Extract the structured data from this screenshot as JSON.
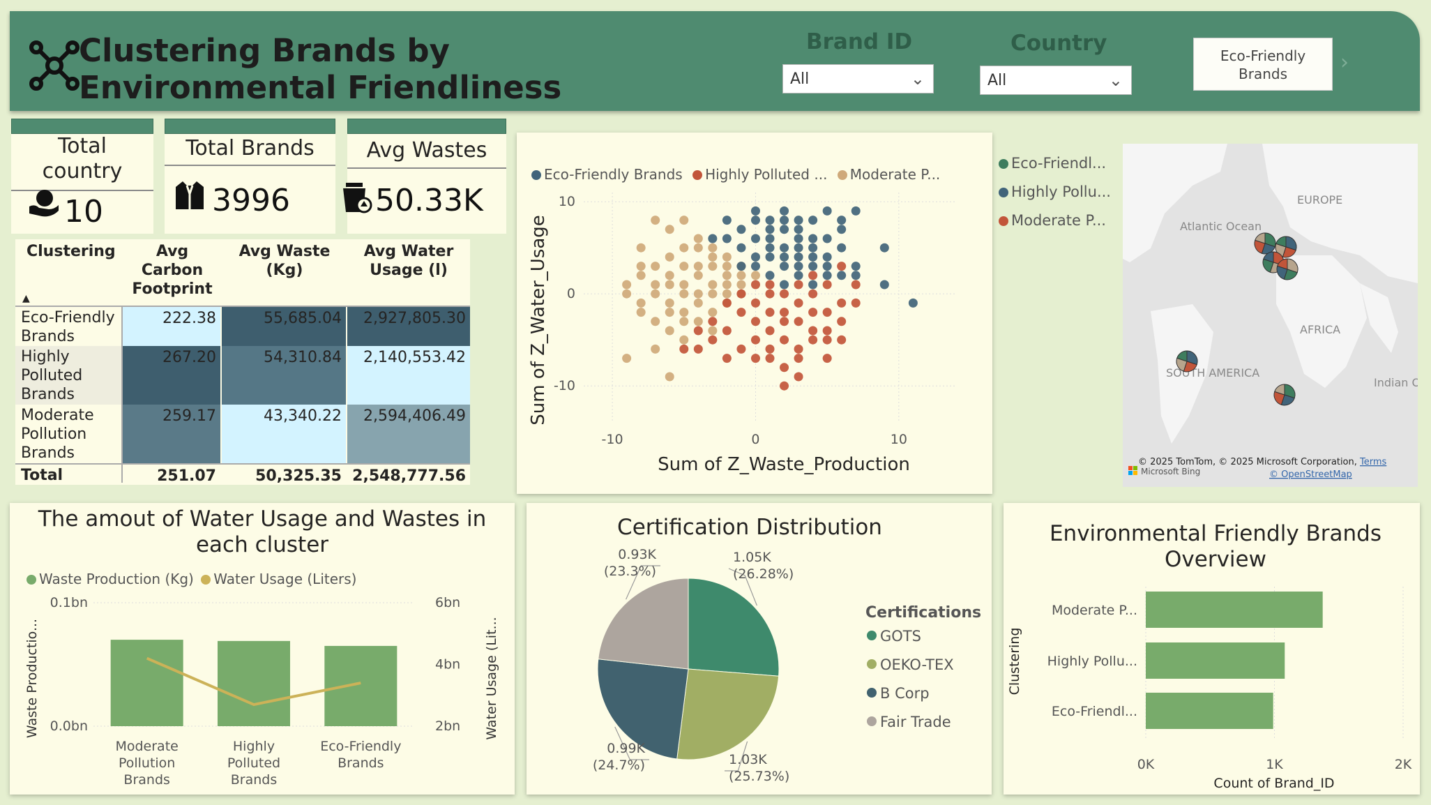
{
  "header": {
    "title": "Clustering Brands by Environmental Friendliness",
    "brand_filter_label": "Brand ID",
    "brand_filter_value": "All",
    "country_filter_label": "Country",
    "country_filter_value": "All",
    "eco_button_line1": "Eco-Friendly",
    "eco_button_line2": "Brands"
  },
  "kpis": {
    "country_label_1": "Total",
    "country_label_2": "country",
    "country_value": "10",
    "brands_label": "Total Brands",
    "brands_value": "3996",
    "wastes_label": "Avg Wastes",
    "wastes_value": "50.33K"
  },
  "matrix": {
    "headers": [
      "Clustering",
      "Avg Carbon Footprint",
      "Avg Waste (Kg)",
      "Avg Water Usage (l)"
    ],
    "rows": [
      {
        "name": "Eco-Friendly Brands",
        "carbon": "222.38",
        "waste": "55,685.04",
        "water": "2,927,805.30"
      },
      {
        "name": "Highly Polluted Brands",
        "carbon": "267.20",
        "waste": "54,310.84",
        "water": "2,140,553.42"
      },
      {
        "name": "Moderate Pollution Brands",
        "carbon": "259.17",
        "waste": "43,340.22",
        "water": "2,594,406.49"
      }
    ],
    "total": {
      "name": "Total",
      "carbon": "251.07",
      "waste": "50,325.35",
      "water": "2,548,777.56"
    }
  },
  "scatter": {
    "legend": [
      "Eco-Friendly Brands",
      "Highly Polluted ...",
      "Moderate P..."
    ],
    "xlabel": "Sum of Z_Waste_Production",
    "ylabel": "Sum of Z_Water_Usage",
    "xticks": [
      "-10",
      "0",
      "10"
    ],
    "yticks": [
      "10",
      "0",
      "-10"
    ],
    "colors": {
      "eco": "#41647a",
      "high": "#c2553a",
      "moderate": "#cfa97a"
    }
  },
  "map": {
    "legend": [
      "Eco-Friendl...",
      "Highly Pollu...",
      "Moderate P..."
    ],
    "labels": [
      "EUROPE",
      "Atlantic Ocean",
      "AFRICA",
      "SOUTH AMERICA",
      "Indian O"
    ],
    "attribution": "© 2025 TomTom, © 2025 Microsoft Corporation,",
    "terms": "Terms",
    "bing": "Microsoft Bing",
    "osm": "© OpenStreetMap"
  },
  "combo": {
    "title_1": "The amout of Water Usage and Wastes in",
    "title_2": "each cluster",
    "legend_waste": "Waste Production (Kg)",
    "legend_water": "Water Usage (Liters)",
    "y_left_label": "Waste Productio...",
    "y_right_label": "Water Usage (Lit...",
    "y_left_ticks": [
      "0.1bn",
      "0.0bn"
    ],
    "y_right_ticks": [
      "6bn",
      "4bn",
      "2bn"
    ],
    "categories": [
      [
        "Moderate",
        "Pollution",
        "Brands"
      ],
      [
        "Highly",
        "Polluted",
        "Brands"
      ],
      [
        "Eco-Friendly",
        "Brands"
      ]
    ]
  },
  "chart_data": [
    {
      "type": "scatter",
      "title": "",
      "xlabel": "Sum of Z_Waste_Production",
      "ylabel": "Sum of Z_Water_Usage",
      "xlim": [
        -12,
        14
      ],
      "ylim": [
        -14,
        11
      ],
      "series": [
        {
          "name": "Eco-Friendly Brands",
          "color": "#41647a",
          "points": [
            [
              -2,
              8
            ],
            [
              0,
              9
            ],
            [
              1,
              8
            ],
            [
              2,
              9
            ],
            [
              3,
              7
            ],
            [
              4,
              8
            ],
            [
              5,
              9
            ],
            [
              6,
              8
            ],
            [
              7,
              9
            ],
            [
              -1,
              7
            ],
            [
              0,
              6
            ],
            [
              1,
              6
            ],
            [
              2,
              7
            ],
            [
              3,
              5
            ],
            [
              4,
              6
            ],
            [
              5,
              4
            ],
            [
              6,
              5
            ],
            [
              1,
              4
            ],
            [
              2,
              3
            ],
            [
              3,
              4
            ],
            [
              4,
              3
            ],
            [
              5,
              2
            ],
            [
              0,
              4
            ],
            [
              1,
              2
            ],
            [
              2,
              1
            ],
            [
              3,
              2
            ],
            [
              4,
              1
            ],
            [
              -1,
              5
            ],
            [
              -3,
              6
            ],
            [
              6,
              2
            ],
            [
              9,
              5
            ],
            [
              9,
              1
            ],
            [
              11,
              -1
            ],
            [
              7,
              3
            ],
            [
              5,
              6
            ],
            [
              3,
              8
            ],
            [
              -2,
              6
            ],
            [
              0,
              3
            ],
            [
              2,
              5
            ],
            [
              4,
              5
            ],
            [
              6,
              7
            ],
            [
              7,
              2
            ],
            [
              1,
              7
            ],
            [
              -1,
              3
            ],
            [
              2,
              8
            ],
            [
              3,
              6
            ],
            [
              4,
              4
            ],
            [
              5,
              3
            ],
            [
              0,
              8
            ],
            [
              1,
              5
            ],
            [
              2,
              4
            ],
            [
              3,
              3
            ]
          ]
        },
        {
          "name": "Highly Polluted ...",
          "color": "#c2553a",
          "points": [
            [
              0,
              -1
            ],
            [
              1,
              0
            ],
            [
              2,
              -2
            ],
            [
              3,
              -1
            ],
            [
              4,
              0
            ],
            [
              5,
              -2
            ],
            [
              6,
              -3
            ],
            [
              7,
              -1
            ],
            [
              -1,
              -2
            ],
            [
              0,
              -3
            ],
            [
              1,
              -4
            ],
            [
              2,
              -5
            ],
            [
              3,
              -6
            ],
            [
              4,
              -5
            ],
            [
              5,
              -4
            ],
            [
              -2,
              -4
            ],
            [
              -3,
              -5
            ],
            [
              -4,
              -6
            ],
            [
              -3,
              -3
            ],
            [
              -1,
              -6
            ],
            [
              0,
              -7
            ],
            [
              1,
              -7
            ],
            [
              2,
              -8
            ],
            [
              3,
              -9
            ],
            [
              2,
              -10
            ],
            [
              1,
              -6
            ],
            [
              3,
              -3
            ],
            [
              4,
              -2
            ],
            [
              5,
              -5
            ],
            [
              6,
              -1
            ],
            [
              7,
              1
            ],
            [
              6,
              3
            ],
            [
              2,
              0
            ],
            [
              1,
              1
            ],
            [
              0,
              1
            ],
            [
              3,
              1
            ],
            [
              4,
              2
            ],
            [
              -1,
              0
            ],
            [
              5,
              1
            ],
            [
              2,
              -3
            ],
            [
              1,
              -2
            ],
            [
              4,
              -4
            ],
            [
              -2,
              -1
            ],
            [
              0,
              -5
            ],
            [
              3,
              -7
            ],
            [
              -5,
              -6
            ],
            [
              -4,
              -4
            ],
            [
              -2,
              -7
            ],
            [
              6,
              -5
            ],
            [
              5,
              -7
            ]
          ]
        },
        {
          "name": "Moderate P...",
          "color": "#cfa97a",
          "points": [
            [
              -7,
              8
            ],
            [
              -6,
              7
            ],
            [
              -5,
              8
            ],
            [
              -4,
              6
            ],
            [
              -3,
              5
            ],
            [
              -2,
              4
            ],
            [
              -1,
              3
            ],
            [
              -6,
              4
            ],
            [
              -7,
              3
            ],
            [
              -8,
              2
            ],
            [
              -9,
              0
            ],
            [
              -8,
              -2
            ],
            [
              -7,
              -3
            ],
            [
              -6,
              -4
            ],
            [
              -5,
              -2
            ],
            [
              -4,
              -1
            ],
            [
              -3,
              0
            ],
            [
              -2,
              1
            ],
            [
              -1,
              2
            ],
            [
              -5,
              3
            ],
            [
              -4,
              2
            ],
            [
              -3,
              3
            ],
            [
              -2,
              -1
            ],
            [
              -6,
              1
            ],
            [
              -7,
              0
            ],
            [
              -4,
              -3
            ],
            [
              -3,
              -2
            ],
            [
              -5,
              0
            ],
            [
              -6,
              -1
            ],
            [
              -8,
              -1
            ],
            [
              -9,
              -7
            ],
            [
              -6,
              -9
            ],
            [
              -5,
              -5
            ],
            [
              -4,
              5
            ],
            [
              -2,
              2
            ],
            [
              -3,
              1
            ],
            [
              -1,
              0
            ],
            [
              -5,
              5
            ],
            [
              -8,
              5
            ],
            [
              -7,
              -6
            ],
            [
              -4,
              0
            ],
            [
              -3,
              -4
            ],
            [
              -2,
              0
            ],
            [
              -6,
              2
            ],
            [
              -5,
              1
            ],
            [
              -4,
              3
            ],
            [
              -3,
              4
            ],
            [
              -2,
              3
            ],
            [
              0,
              2
            ],
            [
              -1,
              1
            ],
            [
              -6,
              -2
            ],
            [
              -7,
              1
            ],
            [
              -8,
              3
            ],
            [
              -9,
              1
            ],
            [
              -5,
              -3
            ]
          ]
        }
      ]
    },
    {
      "type": "bar",
      "title": "The amout of Water Usage and Wastes in each cluster",
      "categories": [
        "Moderate Pollution Brands",
        "Highly Polluted Brands",
        "Eco-Friendly Brands"
      ],
      "series": [
        {
          "name": "Waste Production (Kg)",
          "type": "bar",
          "values": [
            0.07,
            0.069,
            0.065
          ],
          "axis": "left",
          "color": "#78ab6b"
        },
        {
          "name": "Water Usage (Liters)",
          "type": "line",
          "values": [
            4.2,
            2.7,
            3.4
          ],
          "axis": "right",
          "color": "#ccb258"
        }
      ],
      "ylabel": "Waste Productio...",
      "ylabel_right": "Water Usage (Lit...",
      "ylim": [
        0,
        0.1
      ],
      "ylim_right": [
        2,
        6
      ]
    },
    {
      "type": "pie",
      "title": "Certification Distribution",
      "legend_title": "Certifications",
      "slices": [
        {
          "label": "GOTS",
          "value": 1.05,
          "display": "1.05K",
          "pct": "(26.28%)",
          "color": "#3e8a6c"
        },
        {
          "label": "OEKO-TEX",
          "value": 1.03,
          "display": "1.03K",
          "pct": "(25.73%)",
          "color": "#a1ae64"
        },
        {
          "label": "B Corp",
          "value": 0.99,
          "display": "0.99K",
          "pct": "(24.7%)",
          "color": "#41626f"
        },
        {
          "label": "Fair Trade",
          "value": 0.93,
          "display": "0.93K",
          "pct": "(23.3%)",
          "color": "#ada59e"
        }
      ]
    },
    {
      "type": "bar",
      "title": "Environmental Friendly Brands Overview",
      "orientation": "horizontal",
      "categories": [
        "Moderate P...",
        "Highly Pollu...",
        "Eco-Friendl..."
      ],
      "values": [
        1375,
        1080,
        990
      ],
      "xlabel": "Count of Brand_ID",
      "ylabel": "Clustering",
      "xlim": [
        0,
        2000
      ],
      "xticks": [
        "0K",
        "1K",
        "2K"
      ]
    }
  ]
}
